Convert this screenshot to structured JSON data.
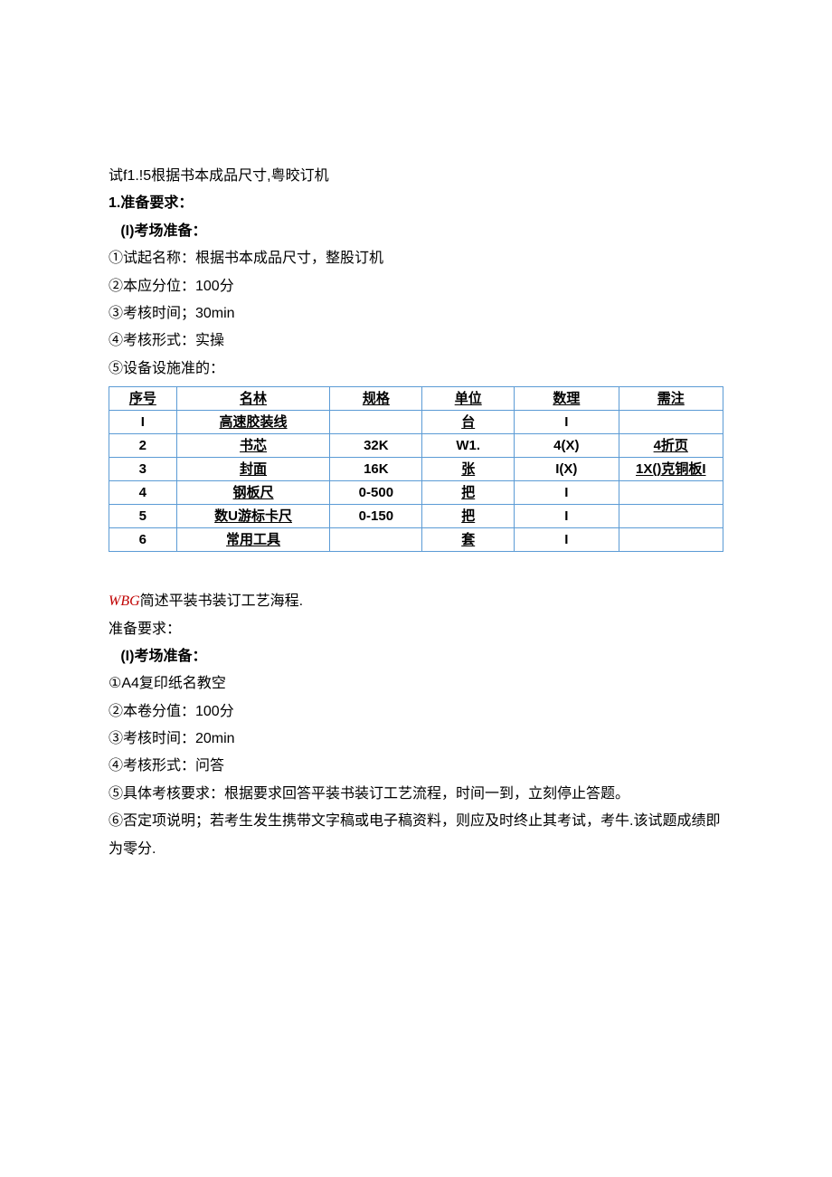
{
  "section1": {
    "title": "试f1.!5根据书本成品尺寸,粤晈订机",
    "prep_heading": "1.准备要求：",
    "sub1": "   (I)考场准备：",
    "items": [
      "①试起名称：根据书本成品尺寸，整股订机",
      "②本应分位：100分",
      "③考核时间；30min",
      "④考核形式：实操",
      "⑤设备设施准的："
    ]
  },
  "table": {
    "colwidths": [
      "11%",
      "25%",
      "15%",
      "15%",
      "17%",
      "17%"
    ],
    "header": [
      "序号",
      "名林",
      "规格",
      "单位",
      "数理",
      "需注"
    ],
    "rows": [
      [
        "I",
        "高速胶装线",
        "",
        "台",
        "I",
        ""
      ],
      [
        "2",
        "书芯",
        "32K",
        "W1.",
        "4(X)",
        "4折页"
      ],
      [
        "3",
        "封面",
        "16K",
        "张",
        "I(X)",
        "1X()克铜板I"
      ],
      [
        "4",
        "钢板尺",
        "0-500",
        "把",
        "I",
        ""
      ],
      [
        "5",
        "数U游标卡尺",
        "0-150",
        "把",
        "I",
        ""
      ],
      [
        "6",
        "常用工具",
        "",
        "套",
        "I",
        ""
      ]
    ],
    "border_color": "#5b9bd5"
  },
  "section2": {
    "titleA": "WBG",
    "titleB": "简述平装书装订工艺海程.",
    "prep_heading": "准备要求：",
    "sub1": "   (I)考场准备：",
    "items": [
      "①A4复印纸名教空",
      "②本卷分值：100分",
      "③考核时间：20min",
      "④考核形式：问答",
      "⑤具体考核要求：根据要求回答平装书装订工艺流程，时间一到，立刻停止答题。",
      "⑥否定项说明；若考生发生携带文字稿或电子稿资料，则应及时终止其考试，考牛.该试题成绩即为零分."
    ]
  }
}
